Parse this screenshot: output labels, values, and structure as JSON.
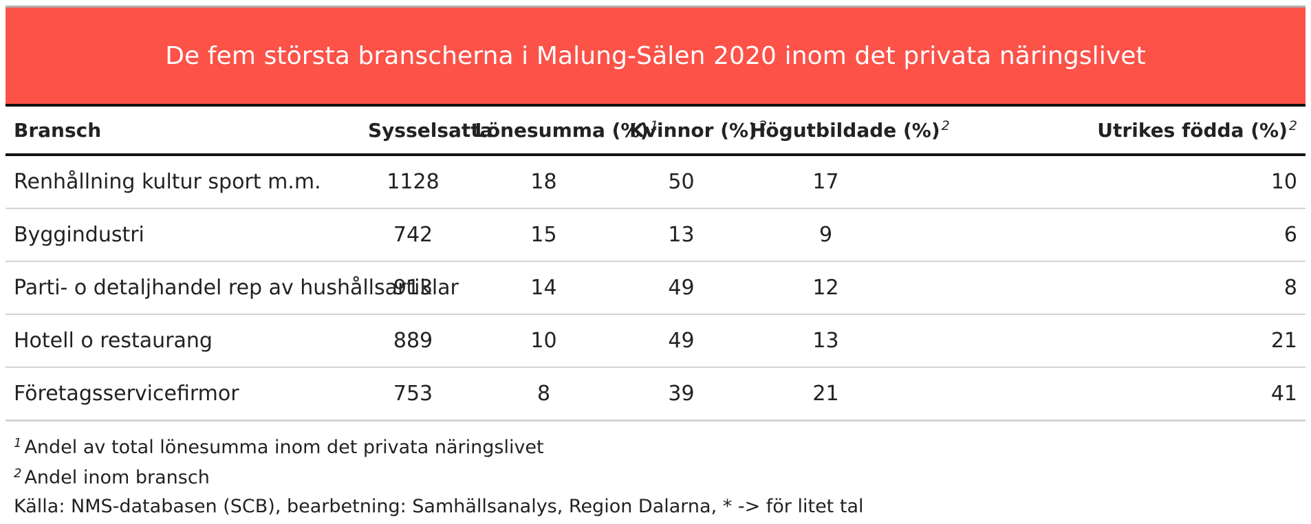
{
  "colors": {
    "title_bg": "#fc5248",
    "title_text": "#ffffff",
    "rule": "#111111",
    "row_border": "#d3d3d3"
  },
  "chart_data": {
    "type": "table",
    "title": "De fem största branscherna i Malung-Sälen 2020 inom det privata näringslivet",
    "columns": [
      {
        "label": "Bransch",
        "footnote": ""
      },
      {
        "label": "Sysselsatta",
        "footnote": ""
      },
      {
        "label": "Lönesumma (%)",
        "footnote": "1"
      },
      {
        "label": "Kvinnor (%)",
        "footnote": "2"
      },
      {
        "label": "Högutbildade (%)",
        "footnote": "2"
      },
      {
        "label": "Utrikes födda (%)",
        "footnote": "2"
      }
    ],
    "rows": [
      [
        "Renhållning kultur sport m.m.",
        "1128",
        "18",
        "50",
        "17",
        "10"
      ],
      [
        "Byggindustri",
        "742",
        "15",
        "13",
        "9",
        "6"
      ],
      [
        "Parti- o detaljhandel rep av hushållsartiklar",
        "913",
        "14",
        "49",
        "12",
        "8"
      ],
      [
        "Hotell o restaurang",
        "889",
        "10",
        "49",
        "13",
        "21"
      ],
      [
        "Företagsservicefirmor",
        "753",
        "8",
        "39",
        "21",
        "41"
      ]
    ],
    "footnotes": [
      {
        "mark": "1",
        "text": "Andel av total lönesumma inom det privata näringslivet"
      },
      {
        "mark": "2",
        "text": "Andel inom bransch"
      }
    ],
    "source": "Källa: NMS-databasen (SCB), bearbetning: Samhällsanalys, Region Dalarna, * -> för litet tal"
  }
}
